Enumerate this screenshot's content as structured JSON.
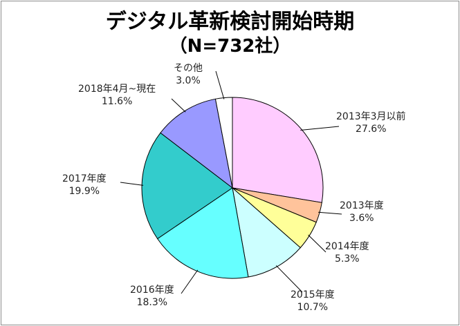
{
  "chart_data": {
    "type": "pie",
    "title": "デジタル革新検討開始時期",
    "subtitle": "（N=732社）",
    "slices": [
      {
        "label": "2013年3月以前",
        "value": 27.6,
        "display": "27.6%",
        "color": "#ffccff"
      },
      {
        "label": "2013年度",
        "value": 3.6,
        "display": "3.6%",
        "color": "#ffc39b"
      },
      {
        "label": "2014年度",
        "value": 5.3,
        "display": "5.3%",
        "color": "#ffff99"
      },
      {
        "label": "2015年度",
        "value": 10.7,
        "display": "10.7%",
        "color": "#ccffff"
      },
      {
        "label": "2016年度",
        "value": 18.3,
        "display": "18.3%",
        "color": "#66ffff"
      },
      {
        "label": "2017年度",
        "value": 19.9,
        "display": "19.9%",
        "color": "#33cccc"
      },
      {
        "label": "2018年4月~現在",
        "value": 11.6,
        "display": "11.6%",
        "color": "#9999ff"
      },
      {
        "label": "その他",
        "value": 3.0,
        "display": "3.0%",
        "color": "#ffffff"
      }
    ],
    "start": "12 o'clock",
    "direction": "clockwise",
    "legend": "none"
  }
}
